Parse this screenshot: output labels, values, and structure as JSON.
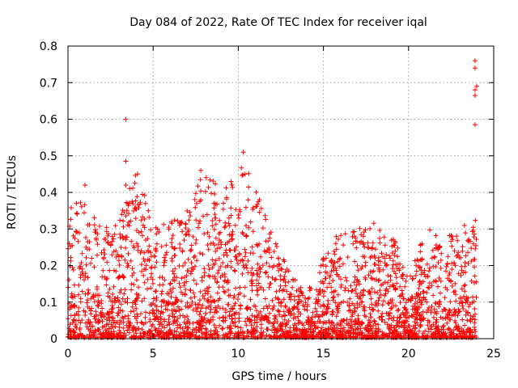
{
  "chart_data": {
    "type": "scatter",
    "title": "Day 084 of 2022, Rate Of TEC Index for receiver iqal",
    "xlabel": "GPS time / hours",
    "ylabel": "ROTI / TECUs",
    "xlim": [
      0,
      25
    ],
    "ylim": [
      0,
      0.8
    ],
    "x_ticks": [
      0,
      5,
      10,
      15,
      20,
      25
    ],
    "y_ticks": [
      0,
      0.1,
      0.2,
      0.3,
      0.4,
      0.5,
      0.6,
      0.7,
      0.8
    ],
    "grid": true,
    "marker": "+",
    "marker_color": "#ff0000",
    "series": [
      {
        "name": "ROTI",
        "profile_note": "upper envelope of ROTI per hour bin (hours 0-24)",
        "envelope_x": [
          0,
          1,
          2,
          3,
          4,
          5,
          6,
          7,
          8,
          9,
          10,
          11,
          12,
          13,
          14,
          15,
          16,
          17,
          18,
          19,
          20,
          21,
          22,
          23,
          24
        ],
        "envelope_y": [
          0.36,
          0.38,
          0.3,
          0.32,
          0.48,
          0.3,
          0.33,
          0.35,
          0.46,
          0.4,
          0.5,
          0.42,
          0.28,
          0.18,
          0.12,
          0.22,
          0.3,
          0.3,
          0.33,
          0.3,
          0.16,
          0.31,
          0.27,
          0.3,
          0.34
        ],
        "outliers": [
          {
            "x": 1.0,
            "y": 0.42
          },
          {
            "x": 3.4,
            "y": 0.6
          },
          {
            "x": 3.4,
            "y": 0.485
          },
          {
            "x": 3.4,
            "y": 0.42
          },
          {
            "x": 7.8,
            "y": 0.46
          },
          {
            "x": 10.3,
            "y": 0.51
          },
          {
            "x": 10.4,
            "y": 0.45
          },
          {
            "x": 15.0,
            "y": 0.22
          },
          {
            "x": 23.9,
            "y": 0.76
          },
          {
            "x": 23.9,
            "y": 0.74
          },
          {
            "x": 24.0,
            "y": 0.69
          },
          {
            "x": 23.9,
            "y": 0.68
          },
          {
            "x": 23.9,
            "y": 0.665
          },
          {
            "x": 23.9,
            "y": 0.585
          }
        ]
      }
    ]
  }
}
